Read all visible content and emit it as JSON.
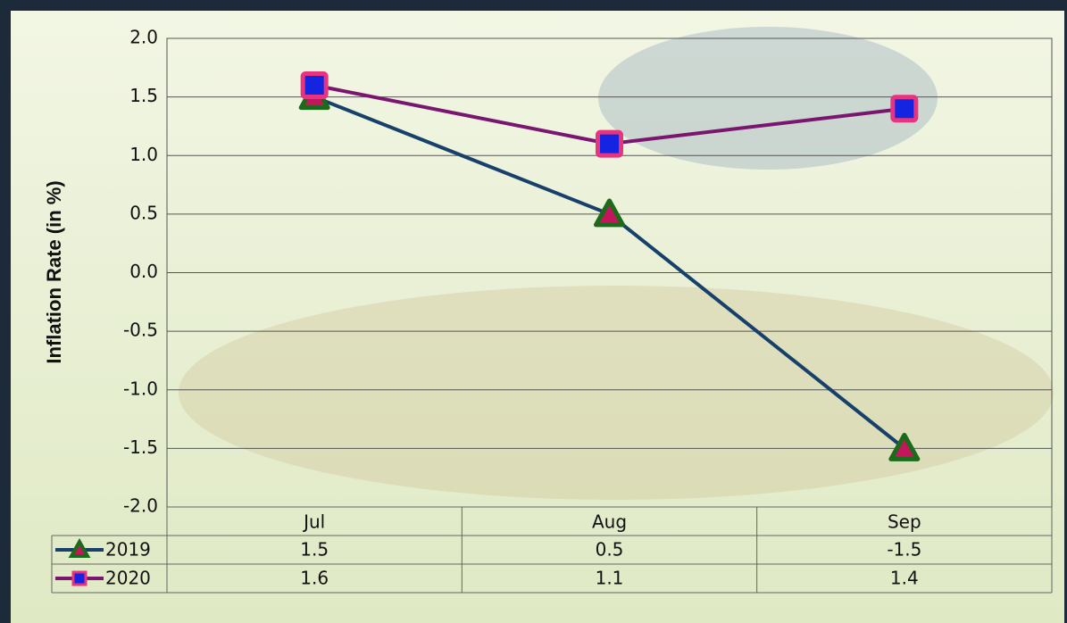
{
  "chart_data": {
    "type": "line",
    "y_label": "Inflation Rate (in %)",
    "categories": [
      "Jul",
      "Aug",
      "Sep"
    ],
    "series": [
      {
        "name": "2019",
        "color": "#17406b",
        "marker": "triangle",
        "marker_fill": "#c2185b",
        "marker_edge": "#1b6b1b",
        "values": [
          1.5,
          0.5,
          -1.5
        ]
      },
      {
        "name": "2020",
        "color": "#7a1670",
        "marker": "square",
        "marker_fill": "#1424e0",
        "marker_edge": "#e8337e",
        "values": [
          1.6,
          1.1,
          1.4
        ]
      }
    ],
    "ylim": [
      -2.0,
      2.0
    ],
    "yticks": [
      {
        "value": 2.0,
        "label": "2.0"
      },
      {
        "value": 1.5,
        "label": "1.5"
      },
      {
        "value": 1.0,
        "label": "1.0"
      },
      {
        "value": 0.5,
        "label": "0.5"
      },
      {
        "value": 0.0,
        "label": "0.0"
      },
      {
        "value": -0.5,
        "label": "-0.5"
      },
      {
        "value": -1.0,
        "label": "-1.0"
      },
      {
        "value": -1.5,
        "label": "-1.5"
      },
      {
        "value": -2.0,
        "label": "-2.0"
      }
    ],
    "grid": true,
    "data_table": true
  }
}
